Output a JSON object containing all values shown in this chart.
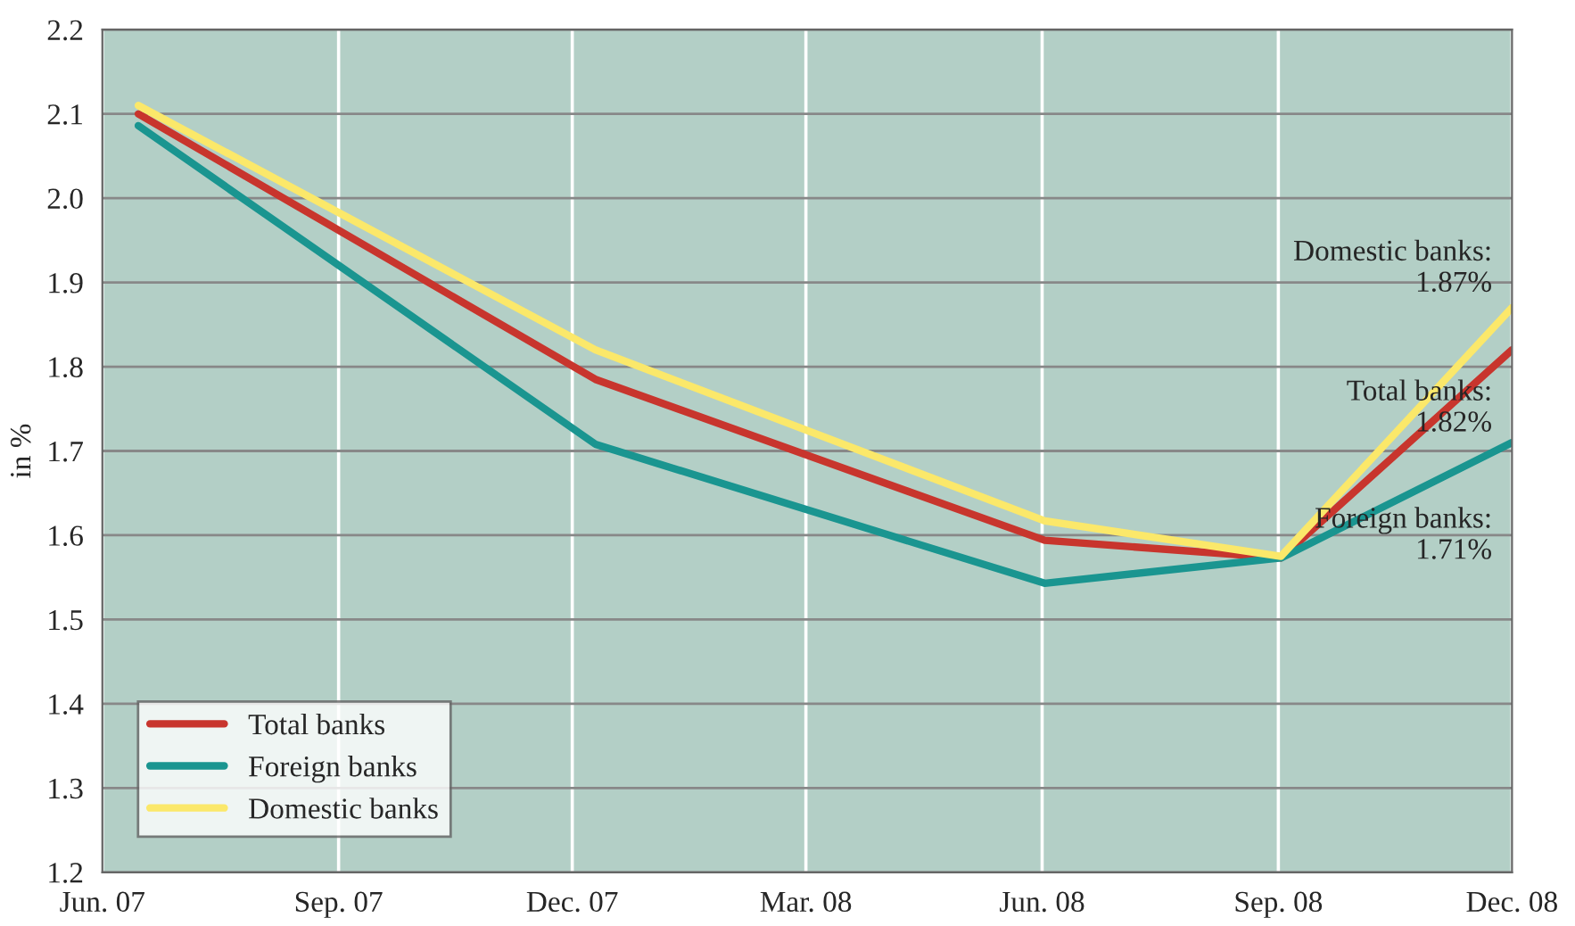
{
  "chart_data": {
    "type": "line",
    "ylabel": "in %",
    "x": [
      "2007-06-15",
      "2007-12-10",
      "2008-06-02",
      "2008-09-02",
      "2008-12-01"
    ],
    "series": [
      {
        "name": "Total banks",
        "color": "#c8352d",
        "values": [
          2.1,
          1.785,
          1.594,
          1.573,
          1.82
        ]
      },
      {
        "name": "Foreign banks",
        "color": "#1a9590",
        "values": [
          2.086,
          1.708,
          1.543,
          1.573,
          1.71
        ]
      },
      {
        "name": "Domestic banks",
        "color": "#fbe86a",
        "values": [
          2.11,
          1.82,
          1.617,
          1.575,
          1.87
        ]
      }
    ],
    "xlim": [
      "2007-06-01",
      "2008-12-01"
    ],
    "xticks": [
      {
        "value": "2007-06-01",
        "label": "Jun. 07"
      },
      {
        "value": "2007-09-01",
        "label": "Sep. 07"
      },
      {
        "value": "2007-12-01",
        "label": "Dec. 07"
      },
      {
        "value": "2008-03-01",
        "label": "Mar. 08"
      },
      {
        "value": "2008-06-01",
        "label": "Jun. 08"
      },
      {
        "value": "2008-09-01",
        "label": "Sep. 08"
      },
      {
        "value": "2008-12-01",
        "label": "Dec. 08"
      }
    ],
    "ylim": [
      1.2,
      2.2
    ],
    "yticks": [
      1.2,
      1.3,
      1.4,
      1.5,
      1.6,
      1.7,
      1.8,
      1.9,
      {
        "value": 2.0,
        "label": "2.0"
      },
      2.1,
      2.2
    ],
    "annotations": [
      {
        "text": "Domestic banks:\n1.87%",
        "x": "2008-12-01",
        "y": 1.87
      },
      {
        "text": "Total banks:\n1.82%",
        "x": "2008-12-01",
        "y": 1.82
      },
      {
        "text": "Foreign banks:\n1.71%",
        "x": "2008-12-01",
        "y": 1.71
      }
    ],
    "grid": true,
    "legend": "bottom left",
    "marker": "none",
    "line_style": "solid"
  }
}
